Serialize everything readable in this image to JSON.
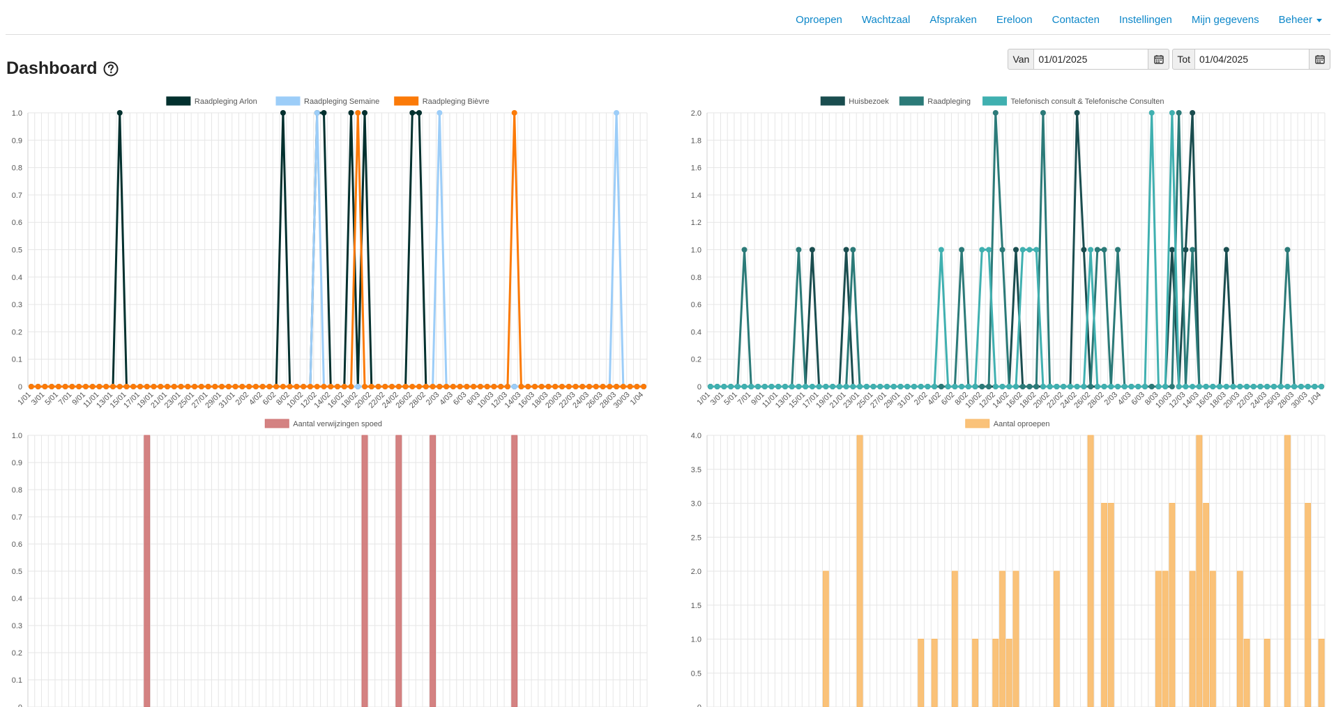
{
  "nav": {
    "items": [
      "Oproepen",
      "Wachtzaal",
      "Afspraken",
      "Ereloon",
      "Contacten",
      "Instellingen",
      "Mijn gegevens",
      "Beheer"
    ]
  },
  "page": {
    "title": "Dashboard"
  },
  "filters": {
    "from_label": "Van",
    "from_value": "01/01/2025",
    "to_label": "Tot",
    "to_value": "01/04/2025"
  },
  "chart_data": [
    {
      "type": "line",
      "x_start": "2025-01-01",
      "days": 91,
      "ylim": [
        0,
        1
      ],
      "grid": true,
      "legend": "top",
      "series": [
        {
          "name": "Raadpleging Arlon",
          "color": "#02302e",
          "ones": [
            "2025-01-14",
            "2025-02-07",
            "2025-02-12",
            "2025-02-13",
            "2025-02-17",
            "2025-02-19",
            "2025-02-26",
            "2025-02-27"
          ],
          "values": [
            0,
            0,
            0,
            0,
            0,
            0,
            0,
            0,
            0,
            0,
            0,
            0,
            0,
            1,
            0,
            0,
            0,
            0,
            0,
            0,
            0,
            0,
            0,
            0,
            0,
            0,
            0,
            0,
            0,
            0,
            0,
            0,
            0,
            0,
            0,
            0,
            0,
            1,
            0,
            0,
            0,
            0,
            1,
            1,
            0,
            0,
            0,
            1,
            0,
            1,
            0,
            0,
            0,
            0,
            0,
            0,
            1,
            1,
            0,
            0,
            0,
            0,
            0,
            0,
            0,
            0,
            0,
            0,
            0,
            0,
            0,
            0,
            0,
            0,
            0,
            0,
            0,
            0,
            0,
            0,
            0,
            0,
            0,
            0,
            0,
            0,
            0,
            0,
            0,
            0,
            0
          ]
        },
        {
          "name": "Raadpleging Semaine",
          "color": "#9ccdf8",
          "ones": [
            "2025-02-12",
            "2025-03-02",
            "2025-03-28"
          ],
          "values": [
            0,
            0,
            0,
            0,
            0,
            0,
            0,
            0,
            0,
            0,
            0,
            0,
            0,
            0,
            0,
            0,
            0,
            0,
            0,
            0,
            0,
            0,
            0,
            0,
            0,
            0,
            0,
            0,
            0,
            0,
            0,
            0,
            0,
            0,
            0,
            0,
            0,
            0,
            0,
            0,
            0,
            0,
            1,
            0,
            0,
            0,
            0,
            0,
            0,
            0,
            0,
            0,
            0,
            0,
            0,
            0,
            0,
            0,
            0,
            0,
            1,
            0,
            0,
            0,
            0,
            0,
            0,
            0,
            0,
            0,
            0,
            0,
            0,
            0,
            0,
            0,
            0,
            0,
            0,
            0,
            0,
            0,
            0,
            0,
            0,
            0,
            1,
            0,
            0,
            0,
            0
          ]
        },
        {
          "name": "Raadpleging Bièvre",
          "color": "#fb7a08",
          "ones": [
            "2025-02-18",
            "2025-03-13"
          ],
          "values": [
            0,
            0,
            0,
            0,
            0,
            0,
            0,
            0,
            0,
            0,
            0,
            0,
            0,
            0,
            0,
            0,
            0,
            0,
            0,
            0,
            0,
            0,
            0,
            0,
            0,
            0,
            0,
            0,
            0,
            0,
            0,
            0,
            0,
            0,
            0,
            0,
            0,
            0,
            0,
            0,
            0,
            0,
            0,
            0,
            0,
            0,
            0,
            0,
            1,
            0,
            0,
            0,
            0,
            0,
            0,
            0,
            0,
            0,
            0,
            0,
            0,
            0,
            0,
            0,
            0,
            0,
            0,
            0,
            0,
            0,
            0,
            1,
            0,
            0,
            0,
            0,
            0,
            0,
            0,
            0,
            0,
            0,
            0,
            0,
            0,
            0,
            0,
            0,
            0,
            0,
            0
          ]
        }
      ]
    },
    {
      "type": "line",
      "x_start": "2025-01-01",
      "days": 91,
      "ylim": [
        0,
        2
      ],
      "grid": true,
      "legend": "top",
      "series": [
        {
          "name": "Huisbezoek",
          "color": "#1a4d4f",
          "points": {
            "2025-01-16": 1,
            "2025-01-21": 1,
            "2025-02-15": 1,
            "2025-02-24": 2,
            "2025-02-25": 1,
            "2025-03-10": 1,
            "2025-03-12": 1,
            "2025-03-13": 2,
            "2025-03-18": 1
          }
        },
        {
          "name": "Raadpleging",
          "color": "#2b7a78",
          "points": {
            "2025-01-06": 1,
            "2025-01-14": 1,
            "2025-01-22": 1,
            "2025-02-07": 1,
            "2025-02-12": 2,
            "2025-02-13": 1,
            "2025-02-19": 2,
            "2025-02-27": 1,
            "2025-02-28": 1,
            "2025-03-02": 1,
            "2025-03-11": 2,
            "2025-03-13": 1,
            "2025-03-27": 1
          }
        },
        {
          "name": "Telefonisch consult & Telefonische Consulten",
          "color": "#40b0b0",
          "points": {
            "2025-02-04": 1,
            "2025-02-10": 1,
            "2025-02-11": 1,
            "2025-02-16": 1,
            "2025-02-17": 1,
            "2025-02-18": 1,
            "2025-02-26": 1,
            "2025-03-07": 2,
            "2025-03-10": 2
          }
        }
      ]
    },
    {
      "type": "bar",
      "x_start": "2025-01-01",
      "days": 91,
      "ylim": [
        0,
        1
      ],
      "grid": true,
      "legend": "top",
      "series": [
        {
          "name": "Aantal verwijzingen spoed",
          "color": "#cf7474",
          "points": {
            "2025-01-18": 1,
            "2025-02-19": 1,
            "2025-02-24": 1,
            "2025-03-01": 1,
            "2025-03-13": 1
          }
        }
      ]
    },
    {
      "type": "bar",
      "x_start": "2025-01-01",
      "days": 91,
      "ylim": [
        0,
        4
      ],
      "grid": true,
      "legend": "top",
      "series": [
        {
          "name": "Aantal oproepen",
          "color": "#f9bb6a",
          "points": {
            "2025-01-18": 2,
            "2025-01-23": 4,
            "2025-02-01": 1,
            "2025-02-03": 1,
            "2025-02-06": 2,
            "2025-02-09": 1,
            "2025-02-12": 1,
            "2025-02-13": 2,
            "2025-02-14": 1,
            "2025-02-15": 2,
            "2025-02-21": 2,
            "2025-02-26": 4,
            "2025-02-28": 3,
            "2025-03-01": 3,
            "2025-03-08": 2,
            "2025-03-09": 2,
            "2025-03-10": 3,
            "2025-03-13": 2,
            "2025-03-14": 4,
            "2025-03-15": 3,
            "2025-03-16": 2,
            "2025-03-20": 2,
            "2025-03-21": 1,
            "2025-03-24": 1,
            "2025-03-27": 4,
            "2025-03-30": 3,
            "2025-04-01": 1
          }
        }
      ]
    }
  ]
}
